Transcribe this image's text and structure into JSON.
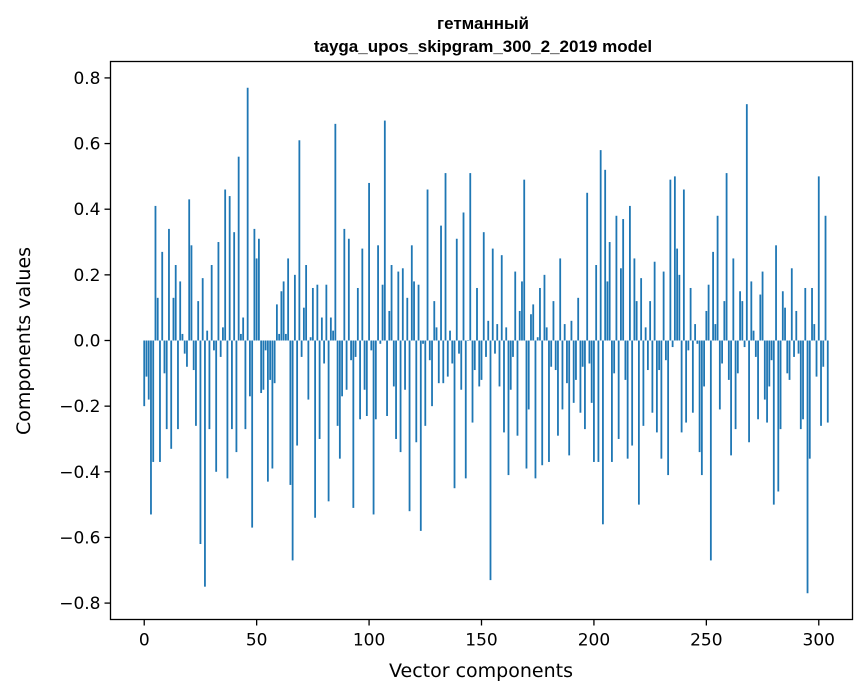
{
  "chart_data": {
    "type": "bar",
    "title_lines": [
      "гетманный",
      "tayga_upos_skipgram_300_2_2019 model"
    ],
    "xlabel": "Vector components",
    "ylabel": "Components values",
    "xlim": [
      -15,
      315
    ],
    "ylim": [
      -0.85,
      0.85
    ],
    "x_ticks": [
      {
        "value": 0,
        "label": "0"
      },
      {
        "value": 50,
        "label": "50"
      },
      {
        "value": 100,
        "label": "100"
      },
      {
        "value": 150,
        "label": "150"
      },
      {
        "value": 200,
        "label": "200"
      },
      {
        "value": 250,
        "label": "250"
      },
      {
        "value": 300,
        "label": "300"
      }
    ],
    "y_ticks": [
      {
        "value": 0.8,
        "label": "0.8"
      },
      {
        "value": 0.6,
        "label": "0.6"
      },
      {
        "value": 0.4,
        "label": "0.4"
      },
      {
        "value": 0.2,
        "label": "0.2"
      },
      {
        "value": 0.0,
        "label": "0.0"
      },
      {
        "value": -0.2,
        "label": "−0.2"
      },
      {
        "value": -0.4,
        "label": "−0.4"
      },
      {
        "value": -0.6,
        "label": "−0.6"
      },
      {
        "value": -0.8,
        "label": "−0.8"
      }
    ],
    "bar_color": "#1f77b4",
    "grid": false,
    "values": [
      -0.2,
      -0.11,
      -0.18,
      -0.53,
      -0.37,
      0.41,
      0.13,
      -0.37,
      0.27,
      -0.1,
      -0.27,
      0.34,
      -0.33,
      0.13,
      0.23,
      -0.27,
      0.18,
      0.02,
      -0.04,
      -0.08,
      0.43,
      0.29,
      -0.09,
      -0.26,
      0.12,
      -0.62,
      0.19,
      -0.75,
      0.03,
      -0.27,
      0.23,
      -0.03,
      -0.4,
      0.3,
      -0.05,
      0.04,
      0.46,
      -0.42,
      0.44,
      -0.27,
      0.33,
      -0.34,
      0.56,
      0.02,
      0.07,
      -0.27,
      0.77,
      -0.17,
      -0.57,
      0.34,
      0.25,
      0.31,
      -0.16,
      -0.15,
      -0.03,
      -0.43,
      -0.12,
      -0.39,
      -0.13,
      0.11,
      0.02,
      0.15,
      0.18,
      0.02,
      0.25,
      -0.44,
      -0.67,
      0.2,
      -0.32,
      0.61,
      -0.05,
      0.1,
      0.23,
      -0.18,
      0.01,
      0.16,
      -0.54,
      0.17,
      -0.3,
      0.07,
      -0.07,
      0.17,
      -0.49,
      0.07,
      0.03,
      0.66,
      -0.26,
      -0.36,
      -0.17,
      0.34,
      -0.15,
      0.31,
      -0.06,
      -0.51,
      -0.05,
      0.16,
      -0.24,
      0.28,
      -0.15,
      -0.23,
      0.48,
      -0.03,
      -0.53,
      -0.24,
      0.29,
      -0.01,
      0.17,
      0.67,
      -0.23,
      0.09,
      0.23,
      -0.14,
      -0.3,
      0.21,
      -0.34,
      0.22,
      -0.15,
      0.13,
      -0.52,
      0.29,
      0.18,
      -0.31,
      0.17,
      -0.58,
      -0.01,
      -0.26,
      0.46,
      -0.06,
      -0.2,
      0.12,
      0.04,
      -0.13,
      0.35,
      -0.13,
      0.51,
      -0.11,
      0.03,
      -0.07,
      -0.45,
      0.31,
      -0.04,
      -0.15,
      0.39,
      -0.42,
      0.0,
      0.51,
      -0.25,
      -0.09,
      0.16,
      -0.14,
      -0.12,
      0.33,
      -0.05,
      0.06,
      -0.73,
      0.28,
      -0.04,
      0.05,
      -0.14,
      0.26,
      -0.28,
      0.04,
      -0.41,
      -0.15,
      -0.05,
      0.21,
      -0.29,
      0.09,
      0.18,
      0.49,
      -0.39,
      -0.21,
      0.08,
      0.11,
      -0.42,
      0.01,
      0.16,
      -0.38,
      0.2,
      0.04,
      -0.37,
      -0.08,
      0.12,
      -0.09,
      -0.29,
      0.25,
      -0.21,
      0.05,
      -0.13,
      -0.35,
      0.06,
      -0.19,
      -0.12,
      0.13,
      -0.22,
      -0.08,
      -0.27,
      0.45,
      -0.07,
      -0.19,
      -0.37,
      0.23,
      -0.37,
      0.58,
      -0.56,
      0.52,
      0.18,
      0.3,
      -0.37,
      -0.1,
      0.38,
      -0.3,
      0.22,
      0.37,
      -0.12,
      -0.36,
      0.41,
      -0.32,
      0.25,
      0.12,
      -0.5,
      0.19,
      -0.26,
      0.04,
      -0.09,
      0.12,
      -0.22,
      0.24,
      -0.28,
      -0.09,
      -0.36,
      0.21,
      -0.06,
      -0.41,
      0.49,
      -0.02,
      0.5,
      0.28,
      0.2,
      -0.28,
      0.46,
      -0.25,
      -0.03,
      0.16,
      -0.22,
      0.05,
      -0.01,
      -0.34,
      -0.41,
      -0.14,
      0.09,
      0.17,
      -0.67,
      0.27,
      0.05,
      0.38,
      -0.21,
      -0.07,
      0.12,
      0.51,
      -0.12,
      -0.35,
      0.25,
      -0.27,
      -0.1,
      0.15,
      0.12,
      -0.02,
      0.72,
      -0.31,
      0.18,
      0.03,
      -0.05,
      -0.24,
      0.14,
      0.21,
      -0.18,
      -0.25,
      -0.14,
      -0.06,
      -0.5,
      0.29,
      -0.46,
      -0.27,
      0.15,
      0.1,
      -0.1,
      -0.12,
      0.22,
      -0.05,
      0.09,
      -0.04,
      -0.27,
      -0.24,
      0.16,
      -0.77,
      -0.36,
      0.16,
      0.05,
      -0.11,
      0.5,
      -0.26,
      -0.08,
      0.38,
      -0.25
    ]
  }
}
